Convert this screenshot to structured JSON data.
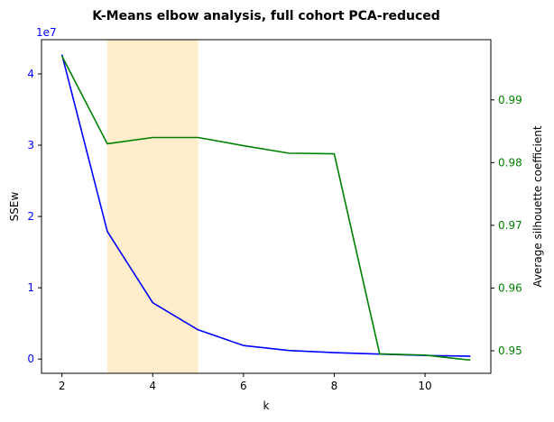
{
  "chart_data": {
    "type": "line",
    "title": "K-Means elbow analysis, full cohort PCA-reduced",
    "xlabel": "k",
    "ylabel_left": "SSEw",
    "ylabel_right": "Average silhouette coefficient",
    "left_offset_label": "1e7",
    "x": [
      2,
      3,
      4,
      5,
      6,
      7,
      8,
      9,
      10,
      11
    ],
    "x_ticks": [
      2,
      4,
      6,
      8,
      10
    ],
    "xlim": [
      1.55,
      11.45
    ],
    "left_axis": {
      "ylim": [
        -0.2,
        4.48
      ],
      "ticks": [
        0,
        1,
        2,
        3,
        4
      ],
      "color": "#0000ff"
    },
    "right_axis": {
      "ylim": [
        0.9464,
        0.9996
      ],
      "ticks": [
        0.95,
        0.96,
        0.97,
        0.98,
        0.99
      ],
      "color": "#008000"
    },
    "series": [
      {
        "axis": "left",
        "color": "#0000ff",
        "values": [
          4.27,
          1.79,
          0.79,
          0.41,
          0.19,
          0.12,
          0.09,
          0.07,
          0.05,
          0.04
        ]
      },
      {
        "axis": "right",
        "color": "#008000",
        "values": [
          0.997,
          0.983,
          0.984,
          0.984,
          0.9827,
          0.9815,
          0.9814,
          0.9495,
          0.9493,
          0.9485
        ]
      }
    ],
    "highlight_span": {
      "x_start": 3,
      "x_end": 5,
      "color": "#ffa500",
      "opacity": 0.2
    },
    "grid": false
  }
}
